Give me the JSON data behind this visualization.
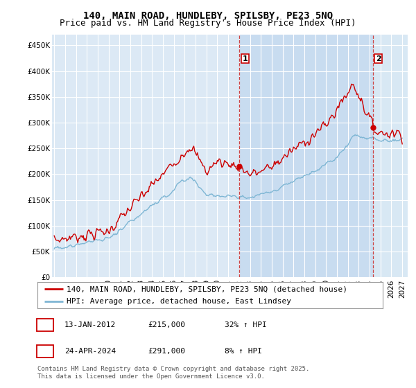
{
  "title": "140, MAIN ROAD, HUNDLEBY, SPILSBY, PE23 5NQ",
  "subtitle": "Price paid vs. HM Land Registry's House Price Index (HPI)",
  "ylabel_ticks": [
    "£0",
    "£50K",
    "£100K",
    "£150K",
    "£200K",
    "£250K",
    "£300K",
    "£350K",
    "£400K",
    "£450K"
  ],
  "ytick_values": [
    0,
    50000,
    100000,
    150000,
    200000,
    250000,
    300000,
    350000,
    400000,
    450000
  ],
  "ylim": [
    0,
    470000
  ],
  "xlim_start": 1994.8,
  "xlim_end": 2027.5,
  "background_color": "#dce9f5",
  "highlight_color": "#c8dcf0",
  "grid_color": "#ffffff",
  "red_line_color": "#cc0000",
  "blue_line_color": "#7eb6d4",
  "vline1_x": 2012.04,
  "vline2_x": 2024.32,
  "vline_color": "#cc4444",
  "annotation1_label": "1",
  "annotation2_label": "2",
  "sale1_x": 2012.04,
  "sale1_y": 215000,
  "sale2_x": 2024.32,
  "sale2_y": 291000,
  "legend_line1": "140, MAIN ROAD, HUNDLEBY, SPILSBY, PE23 5NQ (detached house)",
  "legend_line2": "HPI: Average price, detached house, East Lindsey",
  "table_row1": [
    "1",
    "13-JAN-2012",
    "£215,000",
    "32% ↑ HPI"
  ],
  "table_row2": [
    "2",
    "24-APR-2024",
    "£291,000",
    "8% ↑ HPI"
  ],
  "footer": "Contains HM Land Registry data © Crown copyright and database right 2025.\nThis data is licensed under the Open Government Licence v3.0.",
  "title_fontsize": 10,
  "subtitle_fontsize": 9,
  "tick_fontsize": 7.5,
  "legend_fontsize": 8,
  "table_fontsize": 8,
  "footer_fontsize": 6.5
}
